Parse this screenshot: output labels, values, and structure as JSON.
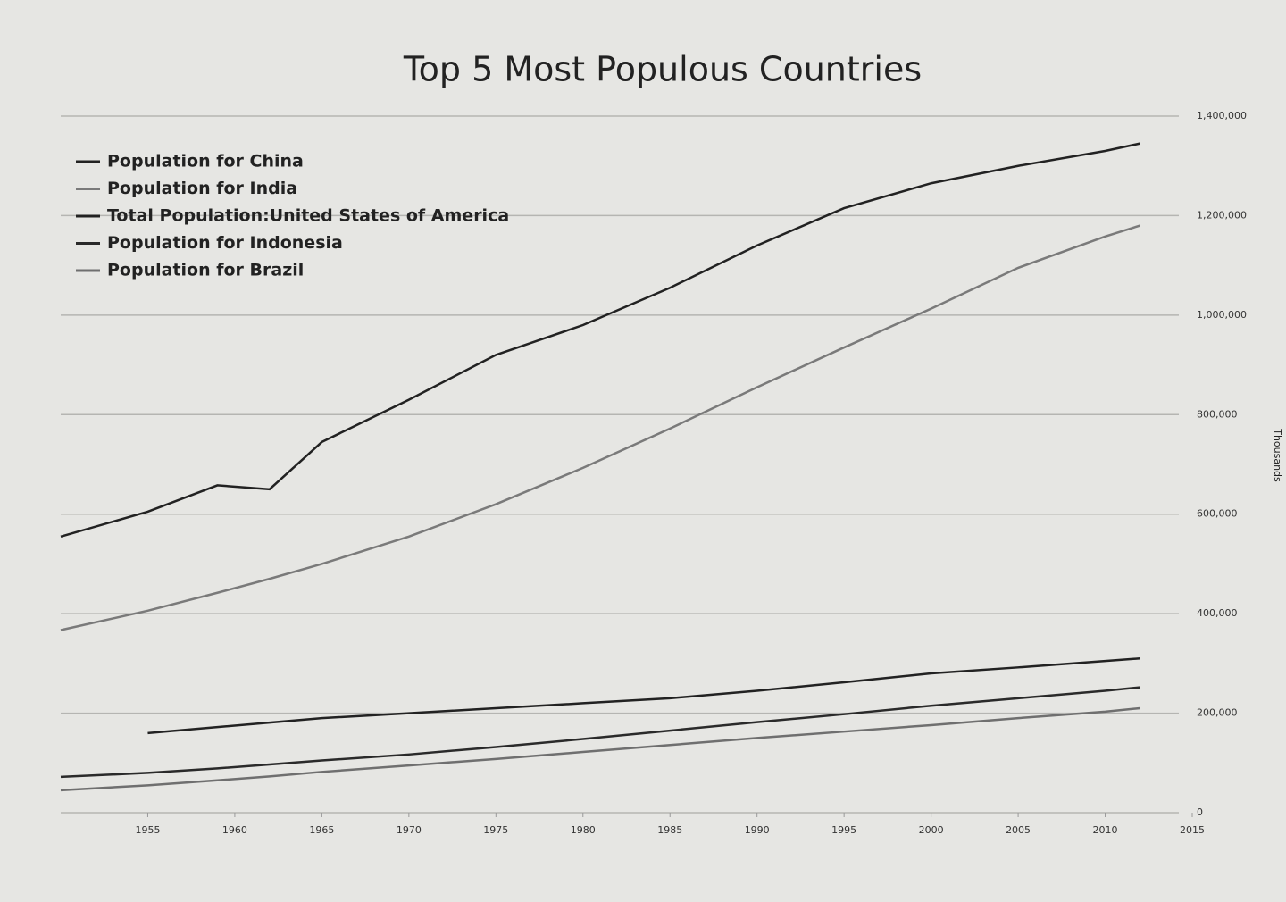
{
  "chart_data": {
    "type": "line",
    "title": "Top 5 Most Populous Countries",
    "y_label": "Thousands",
    "x": [
      1950,
      1955,
      1959,
      1962,
      1965,
      1970,
      1975,
      1980,
      1985,
      1990,
      1995,
      2000,
      2005,
      2010,
      2012
    ],
    "series": [
      {
        "name": "Population for China",
        "color": "#222222",
        "values": [
          555000,
          605000,
          658000,
          650000,
          745000,
          830000,
          920000,
          980000,
          1055000,
          1140000,
          1215000,
          1265000,
          1300000,
          1330000,
          1345000
        ]
      },
      {
        "name": "Population for India",
        "color": "#7a7a7a",
        "values": [
          367000,
          406000,
          442000,
          470000,
          500000,
          555000,
          620000,
          693000,
          772000,
          855000,
          935000,
          1013000,
          1095000,
          1158000,
          1180000
        ]
      },
      {
        "name": "Total Population:United States of America",
        "color": "#222222",
        "values": [
          null,
          160000,
          172000,
          181000,
          190000,
          200000,
          210000,
          220000,
          230000,
          245000,
          262000,
          280000,
          292000,
          305000,
          310000
        ]
      },
      {
        "name": "Population for Indonesia",
        "color": "#2a2a2a",
        "values": [
          72000,
          80000,
          89000,
          97000,
          105000,
          117000,
          132000,
          148000,
          165000,
          182000,
          198000,
          215000,
          230000,
          245000,
          252000
        ]
      },
      {
        "name": "Population for Brazil",
        "color": "#6f6f6f",
        "values": [
          45000,
          55000,
          65000,
          73000,
          82000,
          95000,
          108000,
          122000,
          136000,
          150000,
          163000,
          176000,
          190000,
          203000,
          210000
        ]
      }
    ],
    "xlim": [
      1950,
      2015
    ],
    "xticks": [
      1955,
      1960,
      1965,
      1970,
      1975,
      1980,
      1985,
      1990,
      1995,
      2000,
      2005,
      2010,
      2015
    ],
    "ylim": [
      0,
      1400000
    ],
    "yticks": [
      0,
      {
        "value": 200000,
        "label": "200,000"
      },
      {
        "value": 400000,
        "label": "400,000"
      },
      {
        "value": 600000,
        "label": "600,000"
      },
      {
        "value": 800000,
        "label": "800,000"
      },
      {
        "value": 1000000,
        "label": "1,000,000"
      },
      {
        "value": 1200000,
        "label": "1,200,000"
      },
      {
        "value": 1400000,
        "label": "1,400,000"
      }
    ],
    "grid": true,
    "legend": "top-left"
  }
}
